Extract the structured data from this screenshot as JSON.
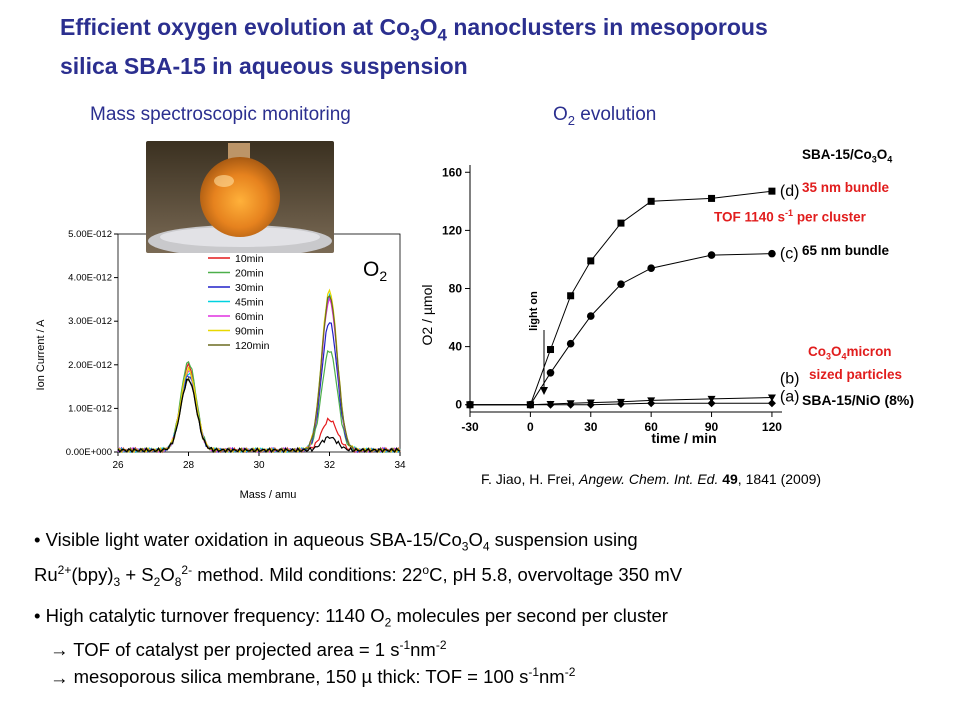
{
  "title": {
    "line1_a": "Efficient oxygen evolution at Co",
    "line1_sub1": "3",
    "line1_b": "O",
    "line1_sub2": "4",
    "line1_c": " nanoclusters in mesoporous",
    "line2": "silica SBA-15 in aqueous suspension"
  },
  "headings": {
    "left": "Mass spectroscopic monitoring",
    "right_a": "O",
    "right_sub": "2",
    "right_b": " evolution"
  },
  "photo": {
    "name": "flask-photo",
    "description_colors": [
      "#e48a2a",
      "#6b5a3a",
      "#cfcfcf"
    ]
  },
  "o2_label": {
    "a": "O",
    "sub": "2"
  },
  "annotations": {
    "sba_co3o4_a": "SBA-15/Co",
    "sba_co3o4_sub1": "3",
    "sba_co3o4_b": "O",
    "sba_co3o4_sub2": "4",
    "bundle35": "35 nm bundle",
    "tof_a": "TOF 1140 s",
    "tof_sup": "-1",
    "tof_b": " per cluster",
    "bundle65": "65 nm bundle",
    "micron_a": "Co",
    "micron_sub1": "3",
    "micron_b": "O",
    "micron_sub2": "4",
    "micron_c": "micron",
    "micron_line2": "sized particles",
    "sba_nio": "SBA-15/NiO (8%)"
  },
  "citation": {
    "authors": "F. Jiao, H. Frei, ",
    "journal": "Angew. Chem. Int. Ed.",
    "space": " ",
    "volume": "49",
    "rest": ", 1841 (2009)"
  },
  "bullets": {
    "b1_a": "• Visible light water oxidation in aqueous SBA-15/Co",
    "b1_sub1": "3",
    "b1_b": "O",
    "b1_sub2": "4",
    "b1_c": " suspension using",
    "b1_d": "Ru",
    "b1_sup1": "2+",
    "b1_e": "(bpy)",
    "b1_sub3": "3",
    "b1_f": " + S",
    "b1_sub4": "2",
    "b1_g": "O",
    "b1_sub5": "8",
    "b1_sup2": "2-",
    "b1_h": " method. Mild conditions: 22",
    "b1_sup3": "o",
    "b1_i": "C, pH 5.8, overvoltage 350 mV",
    "b2_a": "• High catalytic turnover frequency: 1140 O",
    "b2_sub1": "2",
    "b2_b": " molecules per second per cluster",
    "b2_c": "  TOF of catalyst per projected area = 1 s",
    "b2_sup1": "-1",
    "b2_d": "nm",
    "b2_sup2": "-2",
    "b2_e": "  mesoporous silica membrane, 150 µ thick: TOF = 100 s",
    "b2_sup3": "-1",
    "b2_f": "nm",
    "b2_sup4": "-2"
  },
  "chart_data": [
    {
      "type": "line",
      "xlabel": "Mass / amu",
      "ylabel": "Ion Current / A",
      "xlim": [
        26,
        34
      ],
      "ylim": [
        0,
        5e-12
      ],
      "xticks": [
        26,
        28,
        30,
        32,
        34
      ],
      "yticks": [
        "0.00E+000",
        "1.00E-012",
        "2.00E-012",
        "3.00E-012",
        "4.00E-012",
        "5.00E-012"
      ],
      "peaks": [
        28,
        32
      ],
      "series": [
        {
          "name": "10min",
          "color": "#e41a1c",
          "peak28": 1.95e-12,
          "peak32": 7e-13
        },
        {
          "name": "20min",
          "color": "#4daf4a",
          "peak28": 2.02e-12,
          "peak32": 2.3e-12
        },
        {
          "name": "30min",
          "color": "#2020c8",
          "peak28": 1.72e-12,
          "peak32": 2.95e-12
        },
        {
          "name": "45min",
          "color": "#00d2e0",
          "peak28": 1.78e-12,
          "peak32": 3.55e-12
        },
        {
          "name": "60min",
          "color": "#e030e0",
          "peak28": 1.82e-12,
          "peak32": 3.45e-12
        },
        {
          "name": "90min",
          "color": "#e8d800",
          "peak28": 1.85e-12,
          "peak32": 3.65e-12
        },
        {
          "name": "120min",
          "color": "#6b6b20",
          "peak28": 1.62e-12,
          "peak32": 3.55e-12
        }
      ],
      "baseline_black_peak32": 3e-13
    },
    {
      "type": "line",
      "xlabel": "time / min",
      "ylabel": "O2 / µmol",
      "xlim": [
        -30,
        125
      ],
      "ylim": [
        -5,
        165
      ],
      "xticks": [
        -30,
        0,
        30,
        60,
        90,
        120
      ],
      "yticks": [
        0,
        40,
        80,
        120,
        160
      ],
      "arrow_label": "light on",
      "series": [
        {
          "name": "(d)",
          "marker": "square",
          "x": [
            -30,
            0,
            10,
            20,
            30,
            45,
            60,
            90,
            120
          ],
          "y": [
            0,
            0,
            38,
            75,
            99,
            125,
            140,
            142,
            147
          ]
        },
        {
          "name": "(c)",
          "marker": "circle",
          "x": [
            -30,
            0,
            10,
            20,
            30,
            45,
            60,
            90,
            120
          ],
          "y": [
            0,
            0,
            22,
            42,
            61,
            83,
            94,
            103,
            104
          ]
        },
        {
          "name": "(b)",
          "marker": "triangle",
          "x": [
            -30,
            0,
            10,
            20,
            30,
            45,
            60,
            90,
            120
          ],
          "y": [
            0,
            0,
            0.5,
            1,
            1.5,
            2,
            3,
            4,
            5
          ]
        },
        {
          "name": "(a)",
          "marker": "diamond",
          "x": [
            -30,
            0,
            10,
            20,
            30,
            45,
            60,
            90,
            120
          ],
          "y": [
            0,
            0,
            0,
            0,
            0,
            0.5,
            1,
            1,
            1
          ]
        }
      ]
    }
  ]
}
